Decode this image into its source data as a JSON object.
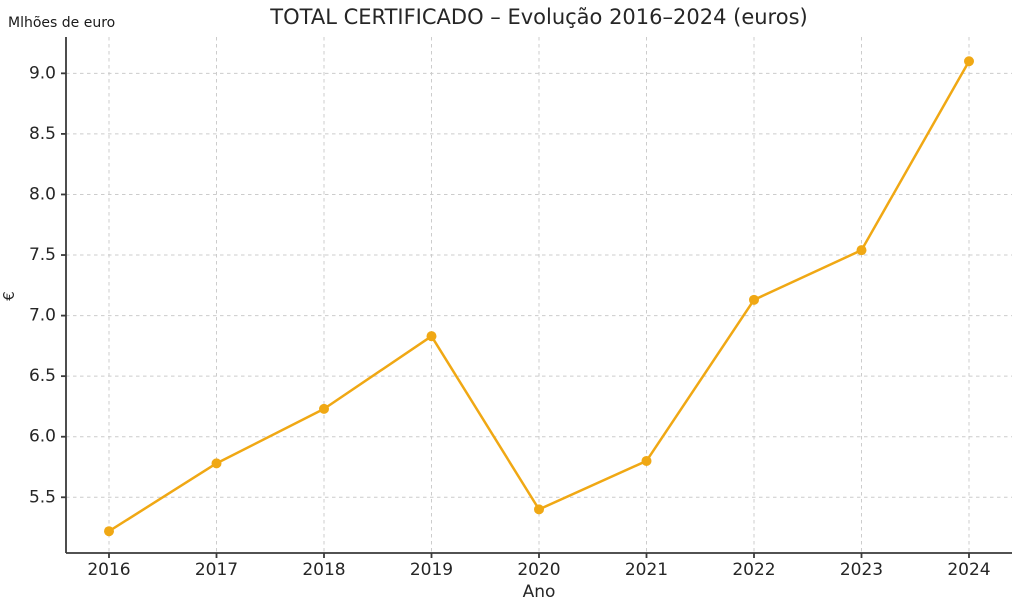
{
  "page": {
    "background": "#ffffff"
  },
  "chart_data": {
    "type": "line",
    "title": "TOTAL CERTIFICADO – Evolução 2016–2024 (euros)",
    "units_note": "Mlhões de euro",
    "xlabel": "Ano",
    "ylabel": "€",
    "categories": [
      2016,
      2017,
      2018,
      2019,
      2020,
      2021,
      2022,
      2023,
      2024
    ],
    "series": [
      {
        "name": "Total certificado",
        "values": [
          5.22,
          5.78,
          6.23,
          6.83,
          5.4,
          5.8,
          7.13,
          7.54,
          9.1
        ]
      }
    ],
    "xticks": [
      2016,
      2017,
      2018,
      2019,
      2020,
      2021,
      2022,
      2023,
      2024
    ],
    "yticks": [
      5.5,
      6.0,
      6.5,
      7.0,
      7.5,
      8.0,
      8.5,
      9.0
    ],
    "xlim": [
      2015.6,
      2024.4
    ],
    "ylim": [
      5.04,
      9.3
    ],
    "grid": true,
    "grid_style": "dashed",
    "legend_position": "none",
    "line_color": "#F0A814",
    "marker_color": "#F0A814",
    "axis_color": "#3a3a3a",
    "grid_color": "#cccccc",
    "tick_text_color": "#262626"
  }
}
